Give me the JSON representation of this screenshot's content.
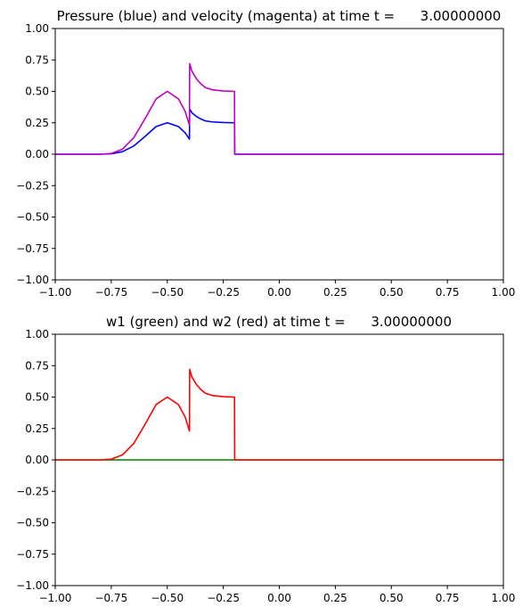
{
  "chart_data": [
    {
      "type": "line",
      "title": "Pressure (blue) and velocity (magenta) at time t =      3.00000000",
      "xlabel": "",
      "ylabel": "",
      "xlim": [
        -1.0,
        1.0
      ],
      "ylim": [
        -1.0,
        1.0
      ],
      "grid": false,
      "xticks": [
        "−1.00",
        "−0.75",
        "−0.50",
        "−0.25",
        "0.00",
        "0.25",
        "0.50",
        "0.75",
        "1.00"
      ],
      "yticks": [
        "−1.00",
        "−0.75",
        "−0.50",
        "−0.25",
        "0.00",
        "0.25",
        "0.50",
        "0.75",
        "1.00"
      ],
      "series": [
        {
          "color": "#0000ff",
          "x": [
            -1.0,
            -0.8,
            -0.75,
            -0.7,
            -0.65,
            -0.6,
            -0.55,
            -0.5,
            -0.45,
            -0.42,
            -0.401,
            -0.4,
            -0.39,
            -0.37,
            -0.35,
            -0.33,
            -0.3,
            -0.25,
            -0.2,
            -0.199,
            -0.19,
            1.0
          ],
          "y": [
            0.0,
            0.0,
            0.003,
            0.02,
            0.065,
            0.14,
            0.22,
            0.25,
            0.22,
            0.17,
            0.12,
            0.36,
            0.33,
            0.3,
            0.28,
            0.265,
            0.257,
            0.252,
            0.25,
            0.0,
            0.0,
            0.0
          ]
        },
        {
          "color": "#bf00bf",
          "x": [
            -1.0,
            -0.8,
            -0.75,
            -0.7,
            -0.65,
            -0.6,
            -0.55,
            -0.5,
            -0.45,
            -0.42,
            -0.401,
            -0.4,
            -0.39,
            -0.37,
            -0.35,
            -0.33,
            -0.3,
            -0.25,
            -0.2,
            -0.199,
            -0.19,
            1.0
          ],
          "y": [
            0.0,
            0.0,
            0.006,
            0.04,
            0.13,
            0.28,
            0.44,
            0.5,
            0.44,
            0.34,
            0.23,
            0.72,
            0.66,
            0.6,
            0.56,
            0.53,
            0.513,
            0.503,
            0.5,
            0.0,
            0.0,
            0.0
          ]
        }
      ]
    },
    {
      "type": "line",
      "title": "w1 (green) and w2 (red) at time t =      3.00000000",
      "xlabel": "",
      "ylabel": "",
      "xlim": [
        -1.0,
        1.0
      ],
      "ylim": [
        -1.0,
        1.0
      ],
      "grid": false,
      "xticks": [
        "−1.00",
        "−0.75",
        "−0.50",
        "−0.25",
        "0.00",
        "0.25",
        "0.50",
        "0.75",
        "1.00"
      ],
      "yticks": [
        "−1.00",
        "−0.75",
        "−0.50",
        "−0.25",
        "0.00",
        "0.25",
        "0.50",
        "0.75",
        "1.00"
      ],
      "series": [
        {
          "color": "#008000",
          "x": [
            -1.0,
            1.0
          ],
          "y": [
            0.0,
            0.0
          ]
        },
        {
          "color": "#ff0000",
          "x": [
            -1.0,
            -0.8,
            -0.75,
            -0.7,
            -0.65,
            -0.6,
            -0.55,
            -0.5,
            -0.45,
            -0.42,
            -0.401,
            -0.4,
            -0.39,
            -0.37,
            -0.35,
            -0.33,
            -0.3,
            -0.25,
            -0.2,
            -0.199,
            -0.19,
            1.0
          ],
          "y": [
            0.0,
            0.0,
            0.006,
            0.04,
            0.13,
            0.28,
            0.44,
            0.5,
            0.44,
            0.34,
            0.23,
            0.72,
            0.66,
            0.6,
            0.56,
            0.53,
            0.513,
            0.503,
            0.5,
            0.0,
            0.0,
            0.0
          ]
        }
      ]
    }
  ]
}
